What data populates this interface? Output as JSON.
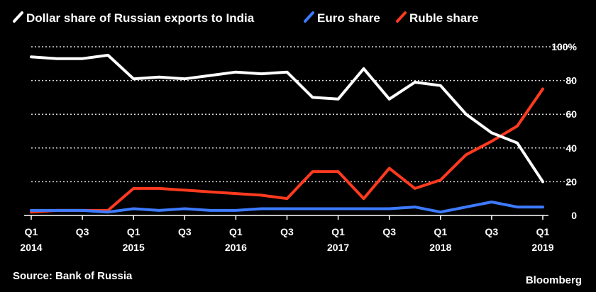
{
  "chart_data": {
    "type": "line",
    "x": [
      "Q1 2014",
      "Q2 2014",
      "Q3 2014",
      "Q4 2014",
      "Q1 2015",
      "Q2 2015",
      "Q3 2015",
      "Q4 2015",
      "Q1 2016",
      "Q2 2016",
      "Q3 2016",
      "Q4 2016",
      "Q1 2017",
      "Q2 2017",
      "Q3 2017",
      "Q4 2017",
      "Q1 2018",
      "Q2 2018",
      "Q3 2018",
      "Q4 2018",
      "Q1 2019"
    ],
    "x_tick_labels": [
      {
        "index": 0,
        "line1": "Q1",
        "line2": "2014"
      },
      {
        "index": 2,
        "line1": "Q3",
        "line2": ""
      },
      {
        "index": 4,
        "line1": "Q1",
        "line2": "2015"
      },
      {
        "index": 6,
        "line1": "Q3",
        "line2": ""
      },
      {
        "index": 8,
        "line1": "Q1",
        "line2": "2016"
      },
      {
        "index": 10,
        "line1": "Q3",
        "line2": ""
      },
      {
        "index": 12,
        "line1": "Q1",
        "line2": "2017"
      },
      {
        "index": 14,
        "line1": "Q3",
        "line2": ""
      },
      {
        "index": 16,
        "line1": "Q1",
        "line2": "2018"
      },
      {
        "index": 18,
        "line1": "Q3",
        "line2": ""
      },
      {
        "index": 20,
        "line1": "Q1",
        "line2": "2019"
      }
    ],
    "series": [
      {
        "name": "Dollar share of Russian exports to India",
        "color": "#ffffff",
        "values": [
          94,
          93,
          93,
          95,
          81,
          82,
          81,
          83,
          85,
          84,
          85,
          70,
          69,
          87,
          69,
          79,
          77,
          60,
          49,
          43,
          20
        ]
      },
      {
        "name": "Euro share",
        "color": "#3d7bff",
        "values": [
          3,
          3,
          3,
          2,
          4,
          3,
          4,
          3,
          3,
          4,
          4,
          4,
          4,
          4,
          4,
          5,
          2,
          5,
          8,
          5,
          5
        ]
      },
      {
        "name": "Ruble share",
        "color": "#ff3a1f",
        "values": [
          2,
          3,
          3,
          3,
          16,
          16,
          15,
          14,
          13,
          12,
          10,
          26,
          26,
          10,
          28,
          16,
          21,
          36,
          44,
          53,
          75
        ]
      }
    ],
    "y_ticks": [
      {
        "value": 0,
        "label": "0"
      },
      {
        "value": 20,
        "label": "20"
      },
      {
        "value": 40,
        "label": "40"
      },
      {
        "value": 60,
        "label": "60"
      },
      {
        "value": 80,
        "label": "80"
      },
      {
        "value": 100,
        "label": "100%"
      }
    ],
    "ylim": [
      0,
      100
    ],
    "grid": true,
    "legend_position": "top-left",
    "source": "Source: Bank of Russia",
    "brand": "Bloomberg"
  }
}
